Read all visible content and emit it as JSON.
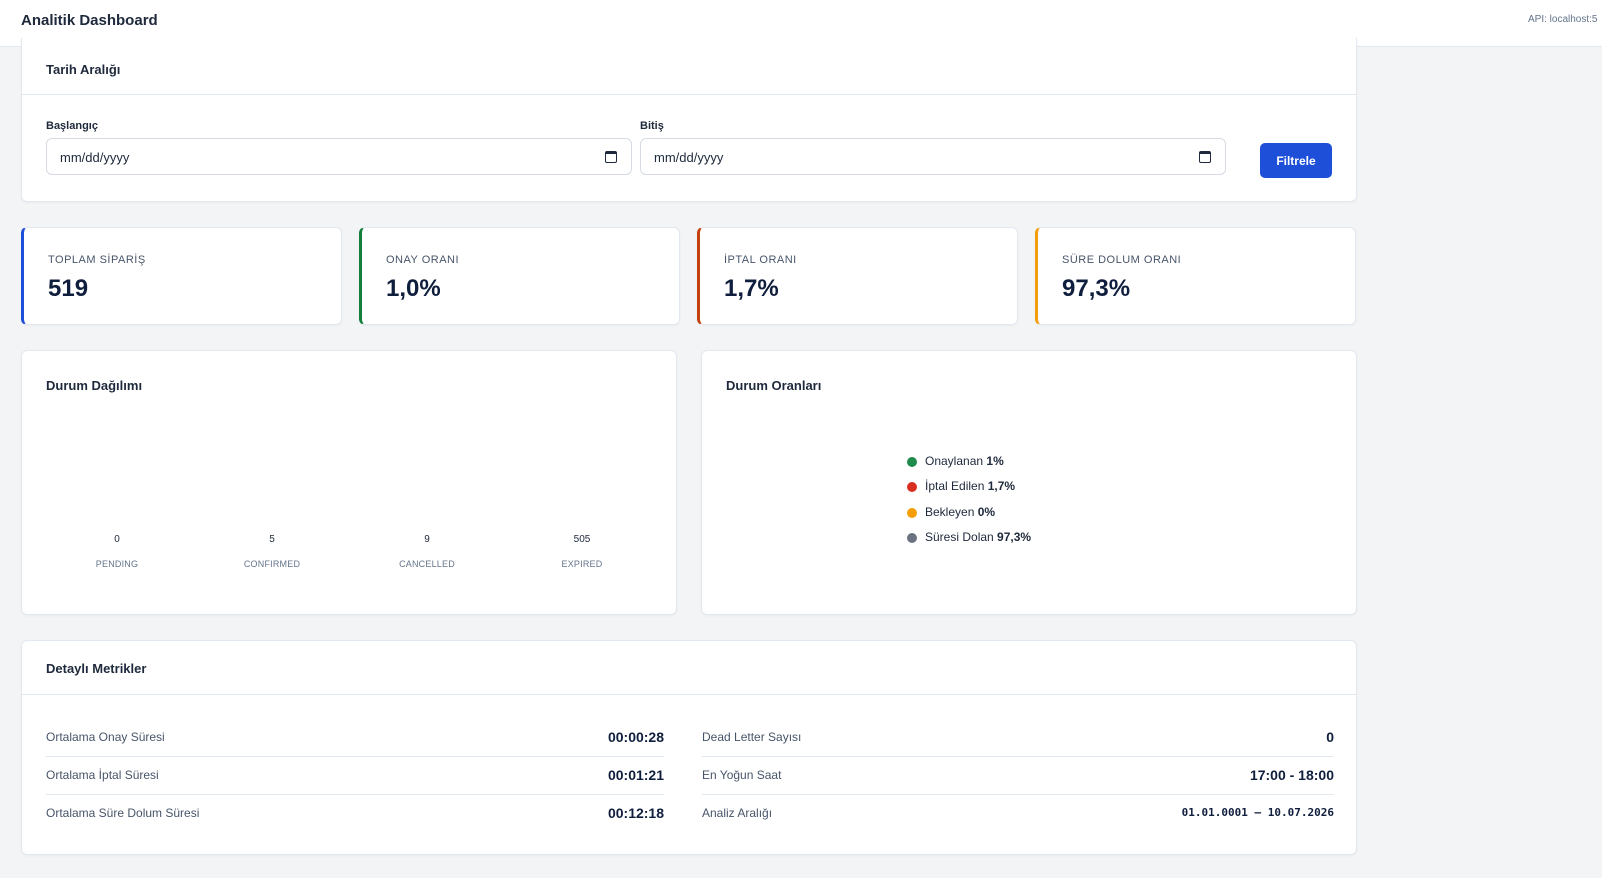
{
  "header": {
    "title": "Analitik Dashboard",
    "api": "API: localhost:5"
  },
  "date_range": {
    "title": "Tarih Aralığı",
    "start_label": "Başlangıç",
    "start_placeholder": "mm/dd/yyyy",
    "end_label": "Bitiş",
    "end_placeholder": "mm/dd/yyyy",
    "filter_button": "Filtrele"
  },
  "kpis": [
    {
      "label": "TOPLAM SİPARİŞ",
      "value": "519",
      "color": "#1d4fd8"
    },
    {
      "label": "ONAY ORANI",
      "value": "1,0%",
      "color": "#15803d"
    },
    {
      "label": "İPTAL ORANI",
      "value": "1,7%",
      "color": "#c2410c"
    },
    {
      "label": "SÜRE DOLUM ORANI",
      "value": "97,3%",
      "color": "#f59e0b"
    }
  ],
  "status_distribution": {
    "title": "Durum Dağılımı",
    "bars": [
      {
        "value": "0",
        "label": "PENDING"
      },
      {
        "value": "5",
        "label": "CONFIRMED"
      },
      {
        "value": "9",
        "label": "CANCELLED"
      },
      {
        "value": "505",
        "label": "EXPIRED"
      }
    ]
  },
  "status_ratios": {
    "title": "Durum Oranları",
    "items": [
      {
        "label": "Onaylanan",
        "value": "1%",
        "color": "#1f8a4c"
      },
      {
        "label": "İptal Edilen",
        "value": "1,7%",
        "color": "#d92d20"
      },
      {
        "label": "Bekleyen",
        "value": "0%",
        "color": "#f59e0b"
      },
      {
        "label": "Süresi Dolan",
        "value": "97,3%",
        "color": "#6b7280"
      }
    ]
  },
  "metrics": {
    "title": "Detaylı Metrikler",
    "left": [
      {
        "label": "Ortalama Onay Süresi",
        "value": "00:00:28"
      },
      {
        "label": "Ortalama İptal Süresi",
        "value": "00:01:21"
      },
      {
        "label": "Ortalama Süre Dolum Süresi",
        "value": "00:12:18"
      }
    ],
    "right": [
      {
        "label": "Dead Letter Sayısı",
        "value": "0"
      },
      {
        "label": "En Yoğun Saat",
        "value": "17:00 - 18:00"
      },
      {
        "label": "Analiz Aralığı",
        "value": "01.01.0001 – 10.07.2026"
      }
    ]
  }
}
